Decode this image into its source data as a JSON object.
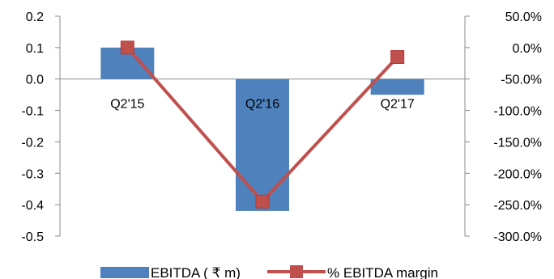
{
  "chart_data": {
    "type": "bar",
    "categories": [
      "Q2'15",
      "Q2'16",
      "Q2'17"
    ],
    "series": [
      {
        "name": "EBITDA ( ₹ m)",
        "type": "bar",
        "axis": "left",
        "values": [
          0.1,
          -0.42,
          -0.05
        ],
        "color": "#4F81BD"
      },
      {
        "name": "% EBITDA margin",
        "type": "line",
        "axis": "right",
        "values": [
          0.0,
          -245.0,
          -15.0
        ],
        "color": "#C0504D"
      }
    ],
    "y_left": {
      "min": -0.5,
      "max": 0.2,
      "step": 0.1,
      "ticks": [
        "0.2",
        "0.1",
        "0.0",
        "-0.1",
        "-0.2",
        "-0.3",
        "-0.4",
        "-0.5"
      ]
    },
    "y_right": {
      "min": -300,
      "max": 50,
      "step": 50,
      "ticks": [
        "50.0%",
        "0.0%",
        "-50.0%",
        "-100.0%",
        "-150.0%",
        "-200.0%",
        "-250.0%",
        "-300.0%"
      ]
    },
    "grid": false,
    "legend_position": "bottom"
  }
}
